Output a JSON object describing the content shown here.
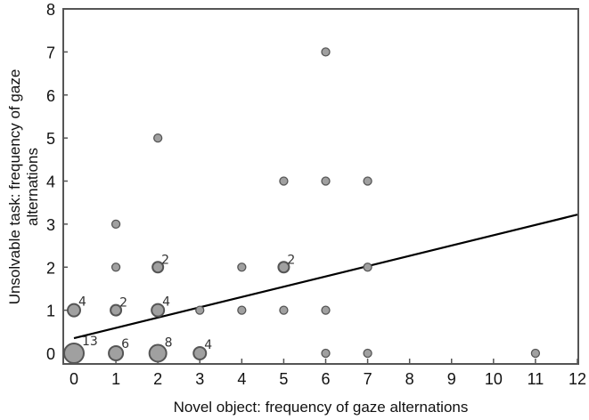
{
  "chart_data": {
    "type": "scatter",
    "title": "",
    "xlabel": "Novel object: frequency of gaze alternations",
    "ylabel_lines": [
      "Unsolvable task: frequency of gaze",
      "alternations"
    ],
    "xlim": [
      0,
      12
    ],
    "ylim": [
      0,
      8
    ],
    "xticks": [
      0,
      1,
      2,
      3,
      4,
      5,
      6,
      7,
      8,
      9,
      10,
      11,
      12
    ],
    "yticks": [
      0,
      1,
      2,
      3,
      4,
      5,
      6,
      7,
      8
    ],
    "grid": false,
    "legend": null,
    "marker_color": "#a0a0a0",
    "marker_edge_color": "#555555",
    "line_color": "#000000",
    "points": [
      {
        "x": 0,
        "y": 0,
        "n": 13,
        "label": "13"
      },
      {
        "x": 1,
        "y": 0,
        "n": 6,
        "label": "6"
      },
      {
        "x": 2,
        "y": 0,
        "n": 8,
        "label": "8"
      },
      {
        "x": 3,
        "y": 0,
        "n": 4,
        "label": "4"
      },
      {
        "x": 6,
        "y": 0,
        "n": 1,
        "label": ""
      },
      {
        "x": 7,
        "y": 0,
        "n": 1,
        "label": ""
      },
      {
        "x": 11,
        "y": 0,
        "n": 1,
        "label": ""
      },
      {
        "x": 0,
        "y": 1,
        "n": 4,
        "label": "4"
      },
      {
        "x": 1,
        "y": 1,
        "n": 2,
        "label": "2"
      },
      {
        "x": 2,
        "y": 1,
        "n": 4,
        "label": "4"
      },
      {
        "x": 3,
        "y": 1,
        "n": 1,
        "label": ""
      },
      {
        "x": 4,
        "y": 1,
        "n": 1,
        "label": ""
      },
      {
        "x": 5,
        "y": 1,
        "n": 1,
        "label": ""
      },
      {
        "x": 6,
        "y": 1,
        "n": 1,
        "label": ""
      },
      {
        "x": 1,
        "y": 2,
        "n": 1,
        "label": ""
      },
      {
        "x": 2,
        "y": 2,
        "n": 2,
        "label": "2"
      },
      {
        "x": 4,
        "y": 2,
        "n": 1,
        "label": ""
      },
      {
        "x": 5,
        "y": 2,
        "n": 2,
        "label": "2"
      },
      {
        "x": 7,
        "y": 2,
        "n": 1,
        "label": ""
      },
      {
        "x": 1,
        "y": 3,
        "n": 1,
        "label": ""
      },
      {
        "x": 5,
        "y": 4,
        "n": 1,
        "label": ""
      },
      {
        "x": 6,
        "y": 4,
        "n": 1,
        "label": ""
      },
      {
        "x": 7,
        "y": 4,
        "n": 1,
        "label": ""
      },
      {
        "x": 2,
        "y": 5,
        "n": 1,
        "label": ""
      },
      {
        "x": 6,
        "y": 7,
        "n": 1,
        "label": ""
      }
    ],
    "regression_line": {
      "x": [
        0,
        12
      ],
      "y": [
        0.35,
        3.22
      ]
    }
  }
}
